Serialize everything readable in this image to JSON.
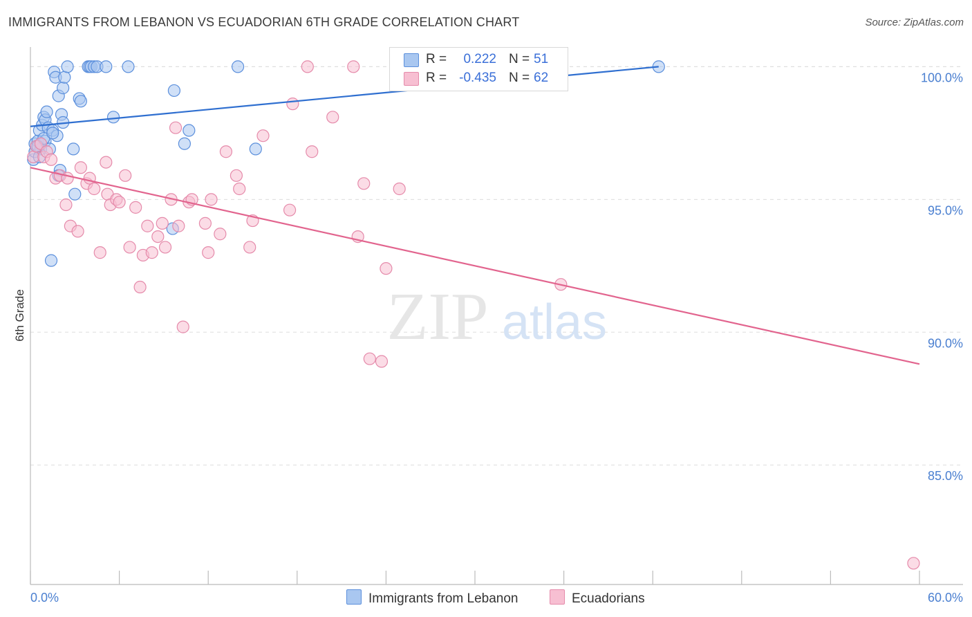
{
  "title": "IMMIGRANTS FROM LEBANON VS ECUADORIAN 6TH GRADE CORRELATION CHART",
  "source": "Source: ZipAtlas.com",
  "watermark": {
    "zip": "ZIP",
    "atlas": "atlas"
  },
  "legend": {
    "r_label": "R =",
    "n_label": "N =",
    "entries": [
      {
        "name": "Immigrants from Lebanon",
        "r": "0.222",
        "n": "51",
        "fill": "#a9c7f0",
        "stroke": "#5b8fdc"
      },
      {
        "name": "Ecuadorians",
        "r": "-0.435",
        "n": "62",
        "fill": "#f7bfd2",
        "stroke": "#e58aaa"
      }
    ]
  },
  "colors": {
    "blue_line": "#2f6fd0",
    "pink_line": "#e2648e",
    "axis_text": "#4a7fd0",
    "grid": "#dddddd"
  },
  "chart_data": {
    "type": "scatter",
    "title": "IMMIGRANTS FROM LEBANON VS ECUADORIAN 6TH GRADE CORRELATION CHART",
    "xlabel": "",
    "ylabel": "6th Grade",
    "xlim": [
      0,
      60
    ],
    "ylim": [
      80.5,
      101
    ],
    "x_tick_labels": [
      "0.0%",
      "60.0%"
    ],
    "y_ticks": [
      85,
      90,
      95,
      100
    ],
    "y_tick_labels": [
      "85.0%",
      "90.0%",
      "95.0%",
      "100.0%"
    ],
    "series": [
      {
        "name": "Immigrants from Lebanon",
        "trend": {
          "x": [
            0,
            42.4
          ],
          "y": [
            97.75,
            100.0
          ]
        },
        "points": [
          [
            0.2,
            96.5
          ],
          [
            0.3,
            96.8
          ],
          [
            0.3,
            97.1
          ],
          [
            0.4,
            97.0
          ],
          [
            0.5,
            97.2
          ],
          [
            0.6,
            97.6
          ],
          [
            0.7,
            96.9
          ],
          [
            0.7,
            97.1
          ],
          [
            0.8,
            97.8
          ],
          [
            0.9,
            98.1
          ],
          [
            1.0,
            97.2
          ],
          [
            1.0,
            98.0
          ],
          [
            1.1,
            98.3
          ],
          [
            1.2,
            97.7
          ],
          [
            1.3,
            96.9
          ],
          [
            1.5,
            97.6
          ],
          [
            1.6,
            99.8
          ],
          [
            1.7,
            99.6
          ],
          [
            1.8,
            97.4
          ],
          [
            1.9,
            98.9
          ],
          [
            2.0,
            96.1
          ],
          [
            2.1,
            98.2
          ],
          [
            2.2,
            97.9
          ],
          [
            2.2,
            99.2
          ],
          [
            2.3,
            99.6
          ],
          [
            2.5,
            100.0
          ],
          [
            2.9,
            96.9
          ],
          [
            3.0,
            95.2
          ],
          [
            3.3,
            98.8
          ],
          [
            3.4,
            98.7
          ],
          [
            3.9,
            100.0
          ],
          [
            4.0,
            100.0
          ],
          [
            4.1,
            100.0
          ],
          [
            4.3,
            100.0
          ],
          [
            4.5,
            100.0
          ],
          [
            5.1,
            100.0
          ],
          [
            5.6,
            98.1
          ],
          [
            6.6,
            100.0
          ],
          [
            9.7,
            99.1
          ],
          [
            9.6,
            93.9
          ],
          [
            10.4,
            97.1
          ],
          [
            10.7,
            97.6
          ],
          [
            14.0,
            100.0
          ],
          [
            15.2,
            96.9
          ],
          [
            42.4,
            100.0
          ],
          [
            1.4,
            92.7
          ],
          [
            0.5,
            97.0
          ],
          [
            0.9,
            97.3
          ],
          [
            1.9,
            95.9
          ],
          [
            1.5,
            97.5
          ],
          [
            0.6,
            96.6
          ]
        ]
      },
      {
        "name": "Ecuadorians",
        "trend": {
          "x": [
            0,
            60
          ],
          "y": [
            96.2,
            88.8
          ]
        },
        "points": [
          [
            0.2,
            96.6
          ],
          [
            0.4,
            97.0
          ],
          [
            0.7,
            97.1
          ],
          [
            0.9,
            96.6
          ],
          [
            1.1,
            96.8
          ],
          [
            1.4,
            96.5
          ],
          [
            1.7,
            95.8
          ],
          [
            2.0,
            95.9
          ],
          [
            2.4,
            94.8
          ],
          [
            2.5,
            95.8
          ],
          [
            2.7,
            94.0
          ],
          [
            3.2,
            93.8
          ],
          [
            3.4,
            96.2
          ],
          [
            3.8,
            95.6
          ],
          [
            4.0,
            95.8
          ],
          [
            4.3,
            95.4
          ],
          [
            4.7,
            93.0
          ],
          [
            5.1,
            96.4
          ],
          [
            5.2,
            95.2
          ],
          [
            5.4,
            94.8
          ],
          [
            5.8,
            95.0
          ],
          [
            6.0,
            94.9
          ],
          [
            6.4,
            95.9
          ],
          [
            6.7,
            93.2
          ],
          [
            7.1,
            94.7
          ],
          [
            7.4,
            91.7
          ],
          [
            7.6,
            92.9
          ],
          [
            7.9,
            94.0
          ],
          [
            8.2,
            93.0
          ],
          [
            8.6,
            93.6
          ],
          [
            8.9,
            94.1
          ],
          [
            9.1,
            93.2
          ],
          [
            9.5,
            95.0
          ],
          [
            9.8,
            97.7
          ],
          [
            10.0,
            94.0
          ],
          [
            10.3,
            90.2
          ],
          [
            10.7,
            94.9
          ],
          [
            10.9,
            95.0
          ],
          [
            11.8,
            94.1
          ],
          [
            12.0,
            93.0
          ],
          [
            12.2,
            95.0
          ],
          [
            12.8,
            93.7
          ],
          [
            13.2,
            96.8
          ],
          [
            13.9,
            95.9
          ],
          [
            14.1,
            95.4
          ],
          [
            14.8,
            93.2
          ],
          [
            15.0,
            94.2
          ],
          [
            15.7,
            97.4
          ],
          [
            17.5,
            94.6
          ],
          [
            17.7,
            98.6
          ],
          [
            18.7,
            100.0
          ],
          [
            19.0,
            96.8
          ],
          [
            20.4,
            98.1
          ],
          [
            21.8,
            100.0
          ],
          [
            22.1,
            93.6
          ],
          [
            22.5,
            95.6
          ],
          [
            22.9,
            89.0
          ],
          [
            23.7,
            88.9
          ],
          [
            24.0,
            92.4
          ],
          [
            24.9,
            95.4
          ],
          [
            35.8,
            91.8
          ],
          [
            59.6,
            81.3
          ]
        ]
      }
    ]
  }
}
